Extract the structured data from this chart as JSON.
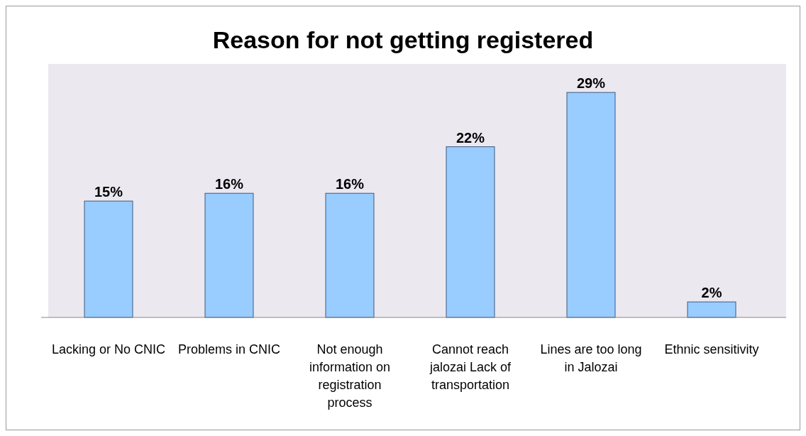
{
  "chart_data": {
    "type": "bar",
    "title": "Reason for not getting registered",
    "categories": [
      "Lacking or No CNIC",
      "Problems in CNIC",
      "Not enough information on registration process",
      "Cannot reach jalozai Lack of transportation",
      "Lines are too long in Jalozai",
      "Ethnic sensitivity"
    ],
    "values": [
      15,
      16,
      16,
      22,
      29,
      2
    ],
    "value_labels": [
      "15%",
      "16%",
      "16%",
      "22%",
      "29%",
      "2%"
    ],
    "color": "#99ccff"
  }
}
